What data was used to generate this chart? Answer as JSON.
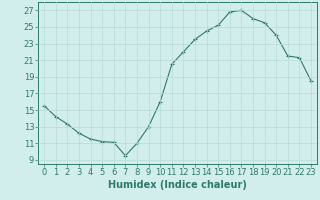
{
  "x": [
    0,
    1,
    2,
    3,
    4,
    5,
    6,
    7,
    8,
    9,
    10,
    11,
    12,
    13,
    14,
    15,
    16,
    17,
    18,
    19,
    20,
    21,
    22,
    23
  ],
  "y": [
    15.5,
    14.2,
    13.3,
    12.2,
    11.5,
    11.2,
    11.1,
    9.5,
    11.0,
    13.0,
    16.0,
    20.5,
    22.0,
    23.5,
    24.5,
    25.2,
    26.8,
    27.0,
    26.0,
    25.5,
    24.0,
    21.5,
    21.3,
    18.5
  ],
  "line_color": "#2d7a6a",
  "marker": "+",
  "marker_size": 3,
  "marker_linewidth": 0.8,
  "bg_color": "#d2eeec",
  "grid_color": "#b8dbd8",
  "xlabel": "Humidex (Indice chaleur)",
  "xlabel_fontsize": 7,
  "tick_fontsize": 6,
  "ylim": [
    8.5,
    28
  ],
  "xlim": [
    -0.5,
    23.5
  ],
  "yticks": [
    9,
    11,
    13,
    15,
    17,
    19,
    21,
    23,
    25,
    27
  ],
  "xticks": [
    0,
    1,
    2,
    3,
    4,
    5,
    6,
    7,
    8,
    9,
    10,
    11,
    12,
    13,
    14,
    15,
    16,
    17,
    18,
    19,
    20,
    21,
    22,
    23
  ],
  "linewidth": 0.8
}
